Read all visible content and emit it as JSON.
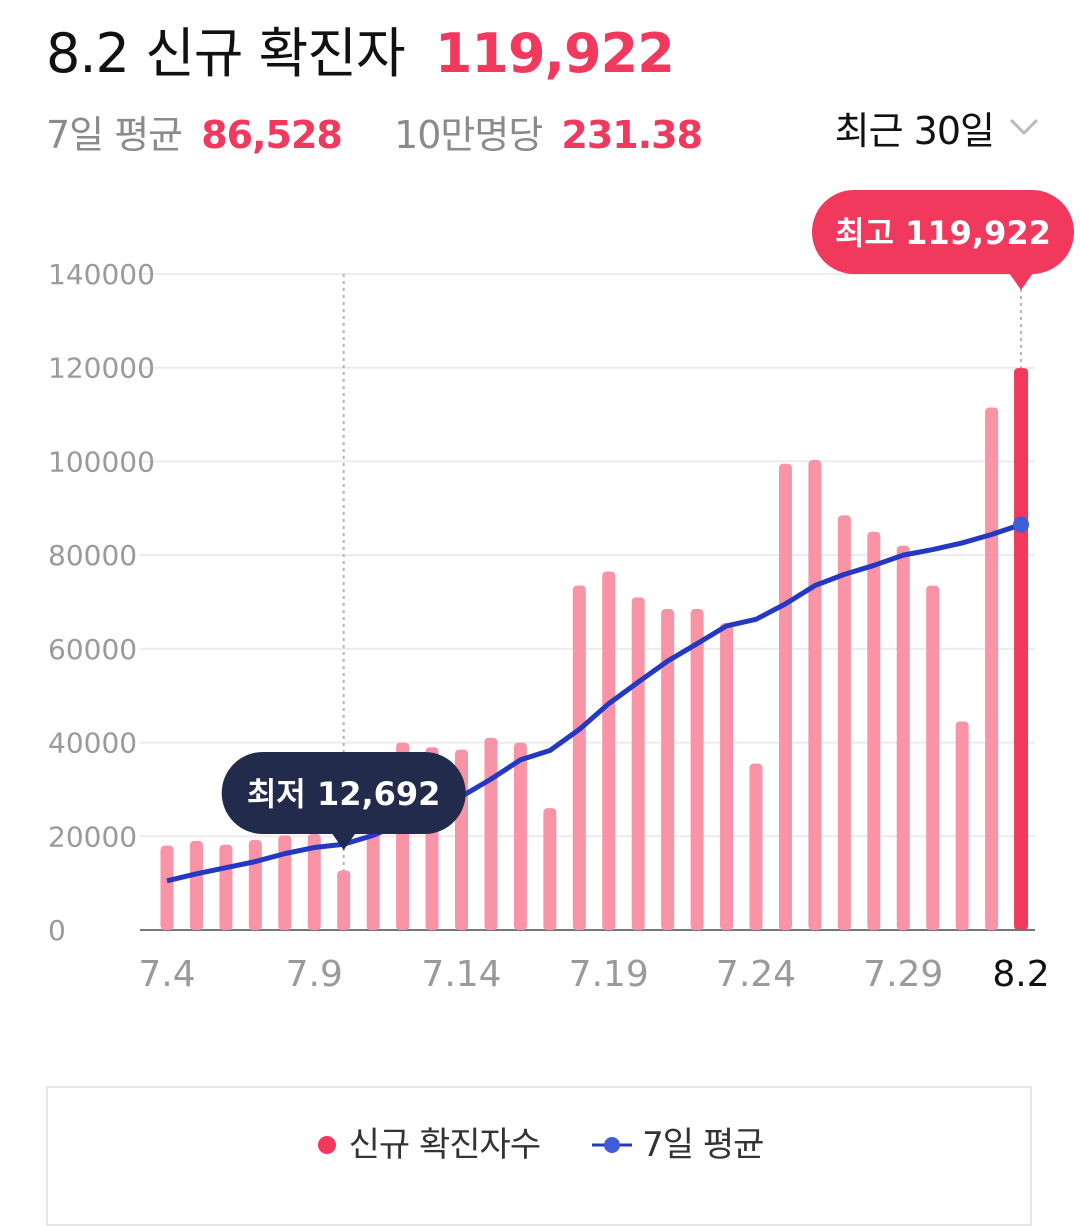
{
  "header": {
    "date": "8.2",
    "title": "신규 확진자",
    "value": "119,922"
  },
  "subheader": {
    "avg_label": "7일 평균",
    "avg_value": "86,528",
    "per_label": "10만명당",
    "per_value": "231.38"
  },
  "range_selector": {
    "label": "최근 30일",
    "icon": "chevron-down-icon"
  },
  "colors": {
    "accent": "#f0395c",
    "bar": "#f993a6",
    "bar_highlight": "#f0395c",
    "line": "#2438c2",
    "tooltip_dark": "#222b4c"
  },
  "chart_data": {
    "type": "bar",
    "categories": [
      "7.4",
      "7.5",
      "7.6",
      "7.7",
      "7.8",
      "7.9",
      "7.10",
      "7.11",
      "7.12",
      "7.13",
      "7.14",
      "7.15",
      "7.16",
      "7.17",
      "7.18",
      "7.19",
      "7.20",
      "7.21",
      "7.22",
      "7.23",
      "7.24",
      "7.25",
      "7.26",
      "7.27",
      "7.28",
      "7.29",
      "7.30",
      "7.31",
      "8.1",
      "8.2"
    ],
    "x_tick_labels": [
      "7.4",
      "7.9",
      "7.14",
      "7.19",
      "7.24",
      "7.29",
      "8.2"
    ],
    "series": [
      {
        "name": "신규 확진자수",
        "type": "bar",
        "values": [
          18000,
          19000,
          18200,
          19200,
          20200,
          20500,
          12692,
          22000,
          40000,
          39000,
          38500,
          41000,
          40000,
          26000,
          73500,
          76500,
          71000,
          68500,
          68500,
          65500,
          35500,
          99500,
          100300,
          88500,
          85000,
          82000,
          73500,
          44500,
          111500,
          119922
        ]
      },
      {
        "name": "7일 평균",
        "type": "line",
        "values": [
          10500,
          12000,
          13300,
          14600,
          16300,
          17600,
          18300,
          20200,
          22800,
          25500,
          28500,
          32200,
          36300,
          38300,
          42800,
          48300,
          52900,
          57400,
          61100,
          64900,
          66300,
          69600,
          73500,
          75900,
          77800,
          80000,
          81200,
          82600,
          84400,
          86528
        ]
      }
    ],
    "ylim": [
      0,
      140000
    ],
    "y_ticks": [
      "0",
      "20000",
      "40000",
      "60000",
      "80000",
      "100000",
      "120000",
      "140000"
    ],
    "grid": true,
    "legend_position": "bottom",
    "annotations": {
      "min": {
        "label": "최저 12,692",
        "index": 6
      },
      "max": {
        "label": "최고 119,922",
        "index": 29
      }
    }
  }
}
